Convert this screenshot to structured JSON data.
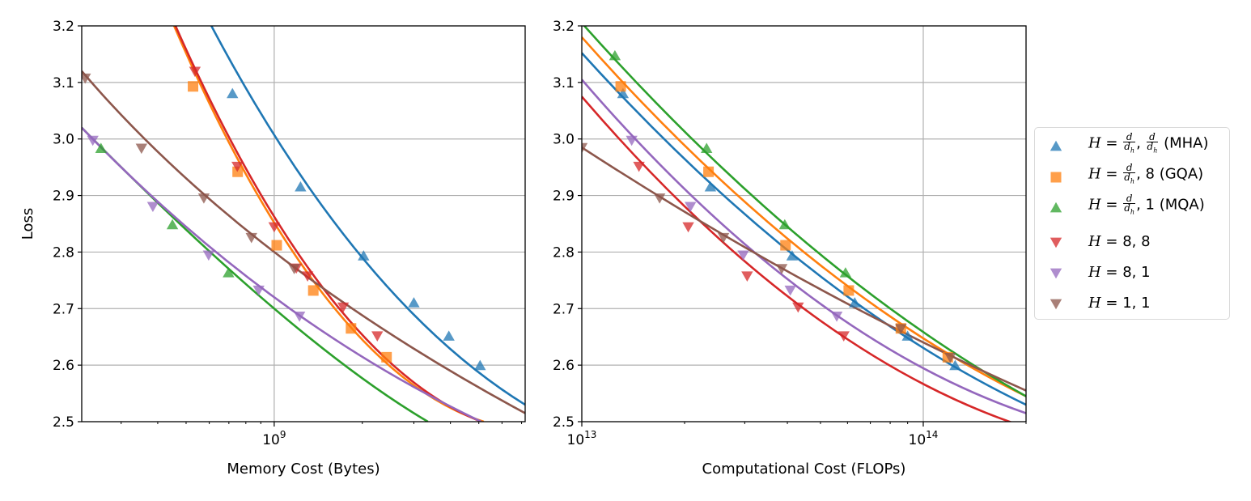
{
  "legend": {
    "position": "right, outside",
    "entries": [
      {
        "series": "MHA",
        "text_pre": "H = ",
        "text_post": ", ",
        "suffix": " (MHA)",
        "kind": "frac-frac",
        "num": "d",
        "den": "d",
        "den_sub": "h"
      },
      {
        "series": "GQA",
        "text_pre": "H = ",
        "text_post": ", 8",
        "suffix": " (GQA)",
        "kind": "frac-const",
        "num": "d",
        "den": "d",
        "den_sub": "h"
      },
      {
        "series": "MQA",
        "text_pre": "H = ",
        "text_post": ", 1",
        "suffix": " (MQA)",
        "kind": "frac-const",
        "num": "d",
        "den": "d",
        "den_sub": "h"
      },
      {
        "series": "H88",
        "text": "H = 8, 8",
        "kind": "plain"
      },
      {
        "series": "H81",
        "text": "H = 8, 1",
        "kind": "plain"
      },
      {
        "series": "H11",
        "text": "H = 1, 1",
        "kind": "plain"
      }
    ]
  },
  "chart_data": [
    {
      "type": "scatter",
      "title": "",
      "xlabel": "Memory Cost (Bytes)",
      "ylabel": "Loss",
      "xscale": "log",
      "xlim": [
        220000000.0,
        7200000000.0
      ],
      "ylim": [
        2.5,
        3.2
      ],
      "x_ticks": [
        {
          "value": 1000000000.0,
          "label": "10^9"
        }
      ],
      "y_ticks": [
        2.5,
        2.6,
        2.7,
        2.8,
        2.9,
        3.0,
        3.1,
        3.2
      ],
      "y_tick_labels": [
        "2.5",
        "2.6",
        "2.7",
        "2.8",
        "2.9",
        "3.0",
        "3.1",
        "3.2"
      ],
      "grid": true,
      "series": [
        {
          "id": "MHA",
          "name": "H = d/dh, d/dh (MHA)",
          "color": "#1f77b4",
          "marker": "triangle-up",
          "x": [
            720000000.0,
            1230000000.0,
            2020000000.0,
            3000000000.0,
            3950000000.0,
            5050000000.0
          ],
          "y": [
            3.08,
            2.915,
            2.793,
            2.71,
            2.651,
            2.599
          ],
          "fit": [
            [
              610000000.0,
              3.2
            ],
            [
              2000000000.0,
              2.79
            ],
            [
              7200000000.0,
              2.53
            ]
          ]
        },
        {
          "id": "GQA",
          "name": "H = d/dh, 8 (GQA)",
          "color": "#ff7f0e",
          "marker": "square",
          "x": [
            528000000.0,
            750000000.0,
            1020000000.0,
            1360000000.0,
            1830000000.0,
            2420000000.0
          ],
          "y": [
            3.093,
            2.942,
            2.812,
            2.732,
            2.665,
            2.614
          ],
          "fit": [
            [
              455000000.0,
              3.2
            ],
            [
              1500000000.0,
              2.72
            ],
            [
              5200000000.0,
              2.5
            ]
          ]
        },
        {
          "id": "MQA",
          "name": "H = d/dh, 1 (MQA)",
          "color": "#2ca02c",
          "marker": "triangle-up",
          "x": [
            256000000.0,
            449000000.0,
            698000000.0
          ],
          "y": [
            2.983,
            2.848,
            2.763
          ],
          "fit": [
            [
              220000000.0,
              3.02
            ],
            [
              1000000000.0,
              2.7
            ],
            [
              3350000000.0,
              2.5
            ]
          ]
        },
        {
          "id": "H88",
          "name": "H = 8, 8",
          "color": "#d62728",
          "marker": "triangle-down",
          "x": [
            536000000.0,
            748000000.0,
            1000000000.0,
            1190000000.0,
            1300000000.0,
            1720000000.0,
            2250000000.0
          ],
          "y": [
            3.12,
            2.952,
            2.845,
            2.772,
            2.758,
            2.703,
            2.652
          ],
          "fit": [
            [
              460000000.0,
              3.2
            ],
            [
              1500000000.0,
              2.73
            ],
            [
              5100000000.0,
              2.5
            ]
          ]
        },
        {
          "id": "H81",
          "name": "H = 8, 1",
          "color": "#9467bd",
          "marker": "triangle-down",
          "x": [
            240000000.0,
            385000000.0,
            597000000.0,
            885000000.0,
            1220000000.0
          ],
          "y": [
            2.998,
            2.881,
            2.795,
            2.733,
            2.687
          ],
          "fit": [
            [
              220000000.0,
              3.02
            ],
            [
              1000000000.0,
              2.72
            ],
            [
              5100000000.0,
              2.5
            ]
          ]
        },
        {
          "id": "H11",
          "name": "H = 1, 1",
          "color": "#8c564b",
          "marker": "triangle-down",
          "x": [
            226000000.0,
            352000000.0,
            575000000.0,
            836000000.0,
            1170000000.0
          ],
          "y": [
            3.108,
            2.984,
            2.896,
            2.826,
            2.771
          ],
          "fit": [
            [
              220000000.0,
              3.12
            ],
            [
              1000000000.0,
              2.8
            ],
            [
              7200000000.0,
              2.515
            ]
          ]
        }
      ]
    },
    {
      "type": "scatter",
      "title": "",
      "xlabel": "Computational Cost (FLOPs)",
      "ylabel": "",
      "xscale": "log",
      "xlim": [
        10000000000000.0,
        200000000000000.0
      ],
      "ylim": [
        2.5,
        3.2
      ],
      "x_ticks": [
        {
          "value": 10000000000000.0,
          "label": "10^13"
        },
        {
          "value": 100000000000000.0,
          "label": "10^14"
        }
      ],
      "y_ticks": [
        2.5,
        2.6,
        2.7,
        2.8,
        2.9,
        3.0,
        3.1,
        3.2
      ],
      "y_tick_labels": [
        "2.5",
        "2.6",
        "2.7",
        "2.8",
        "2.9",
        "3.0",
        "3.1",
        "3.2"
      ],
      "grid": true,
      "series": [
        {
          "id": "MHA",
          "color": "#1f77b4",
          "marker": "triangle-up",
          "x": [
            13200000000000.0,
            23800000000000.0,
            41300000000000.0,
            63000000000000.0,
            90000000000000.0,
            124000000000000.0
          ],
          "y": [
            3.08,
            2.915,
            2.793,
            2.71,
            2.651,
            2.599
          ],
          "fit": [
            [
              10000000000000.0,
              3.152
            ],
            [
              44700000000000.0,
              2.78
            ],
            [
              200000000000000.0,
              2.53
            ]
          ]
        },
        {
          "id": "GQA",
          "color": "#ff7f0e",
          "marker": "square",
          "x": [
            13000000000000.0,
            23500000000000.0,
            39500000000000.0,
            60500000000000.0,
            86000000000000.0,
            118000000000000.0
          ],
          "y": [
            3.093,
            2.942,
            2.812,
            2.732,
            2.665,
            2.614
          ],
          "fit": [
            [
              10000000000000.0,
              3.18
            ],
            [
              44700000000000.0,
              2.8
            ],
            [
              200000000000000.0,
              2.545
            ]
          ]
        },
        {
          "id": "MQA",
          "color": "#2ca02c",
          "marker": "triangle-up",
          "x": [
            12500000000000.0,
            23200000000000.0,
            39300000000000.0,
            59200000000000.0
          ],
          "y": [
            3.147,
            2.983,
            2.848,
            2.763
          ],
          "fit": [
            [
              10000000000000.0,
              3.205
            ],
            [
              44700000000000.0,
              2.82
            ],
            [
              200000000000000.0,
              2.545
            ]
          ]
        },
        {
          "id": "H88",
          "color": "#d62728",
          "marker": "triangle-down",
          "x": [
            14700000000000.0,
            20500000000000.0,
            30500000000000.0,
            43000000000000.0,
            58500000000000.0
          ],
          "y": [
            2.952,
            2.845,
            2.758,
            2.703,
            2.652
          ],
          "fit": [
            [
              10000000000000.0,
              3.075
            ],
            [
              44700000000000.0,
              2.7
            ],
            [
              200000000000000.0,
              2.49
            ]
          ]
        },
        {
          "id": "H81",
          "color": "#9467bd",
          "marker": "triangle-down",
          "x": [
            14000000000000.0,
            20800000000000.0,
            29700000000000.0,
            40800000000000.0,
            55800000000000.0
          ],
          "y": [
            2.998,
            2.881,
            2.795,
            2.733,
            2.687
          ],
          "fit": [
            [
              10000000000000.0,
              3.105
            ],
            [
              44700000000000.0,
              2.73
            ],
            [
              200000000000000.0,
              2.515
            ]
          ]
        },
        {
          "id": "H11",
          "color": "#8c564b",
          "marker": "triangle-down",
          "x": [
            10000000000000.0,
            16900000000000.0,
            26000000000000.0,
            38500000000000.0,
            86000000000000.0,
            120000000000000.0
          ],
          "y": [
            2.985,
            2.896,
            2.826,
            2.771,
            2.665,
            2.614
          ],
          "fit": [
            [
              10000000000000.0,
              2.985
            ],
            [
              44700000000000.0,
              2.75
            ],
            [
              200000000000000.0,
              2.555
            ]
          ]
        }
      ]
    }
  ]
}
